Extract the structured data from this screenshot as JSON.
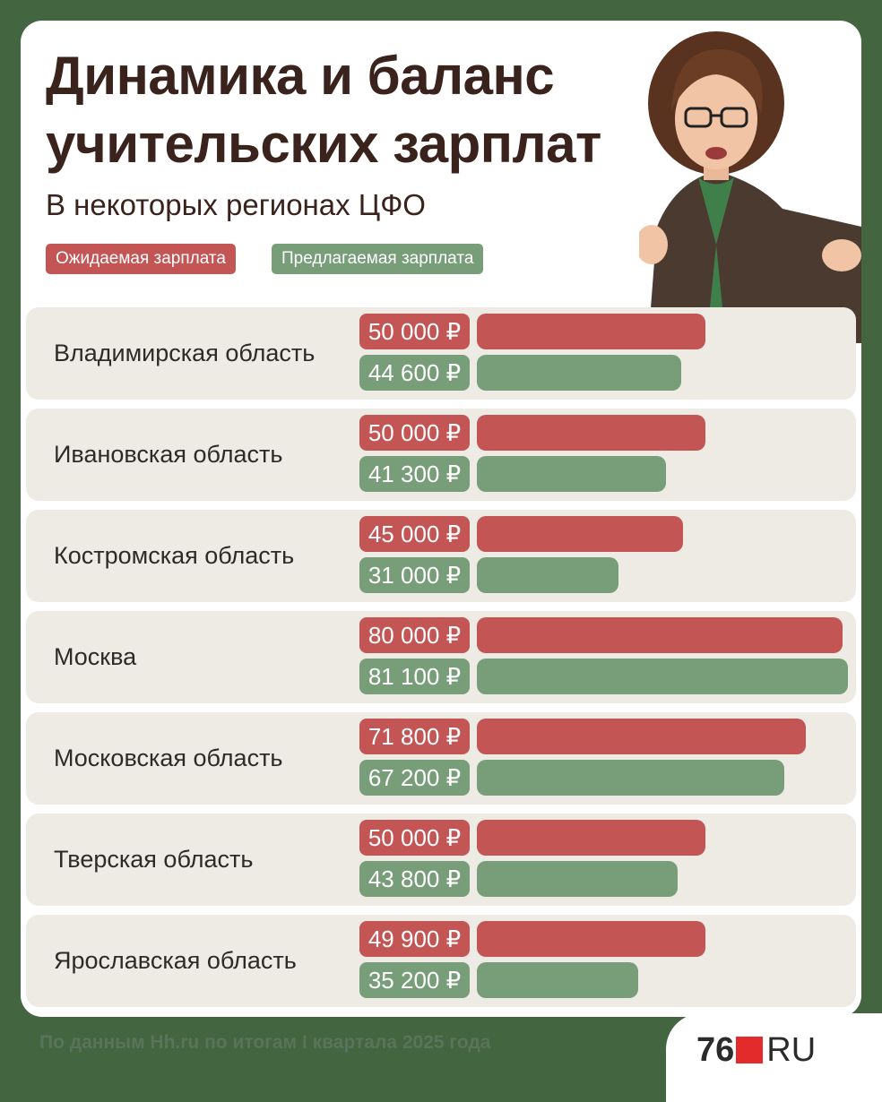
{
  "header": {
    "title": "Динамика и баланс учительских зарплат",
    "subtitle": "В некоторых регионах ЦФО"
  },
  "legend": {
    "expected": "Ожидаемая зарплата",
    "offered": "Предлагаемая зарплата"
  },
  "colors": {
    "background": "#436540",
    "expected": "#c45555",
    "offered": "#789d79",
    "row": "#eeebe5",
    "title": "#3a231c"
  },
  "illustration": "teacher-with-pointer-illustration",
  "chart_data": {
    "type": "bar",
    "orientation": "horizontal",
    "categories": [
      "Владимирская область",
      "Ивановская область",
      "Костромская область",
      "Москва",
      "Московская область",
      "Тверская область",
      "Ярославская область"
    ],
    "series": [
      {
        "name": "Ожидаемая зарплата",
        "values": [
          50000,
          50000,
          45000,
          80000,
          71800,
          50000,
          49900
        ],
        "labels": [
          "50 000 ₽",
          "50 000 ₽",
          "45 000 ₽",
          "80 000 ₽",
          "71 800 ₽",
          "50 000 ₽",
          "49 900 ₽"
        ]
      },
      {
        "name": "Предлагаемая зарплата",
        "values": [
          44600,
          41300,
          31000,
          81100,
          67200,
          43800,
          35200
        ],
        "labels": [
          "44 600 ₽",
          "41 300 ₽",
          "31 000 ₽",
          "81 100 ₽",
          "67 200 ₽",
          "43 800 ₽",
          "35 200 ₽"
        ]
      }
    ],
    "xlim": [
      0,
      81100
    ],
    "grid": false,
    "legend": "top-left"
  },
  "footer": {
    "source": "По данным Hh.ru по итогам I квартала 2025 года"
  },
  "logo": {
    "number": "76",
    "domain": "RU"
  }
}
